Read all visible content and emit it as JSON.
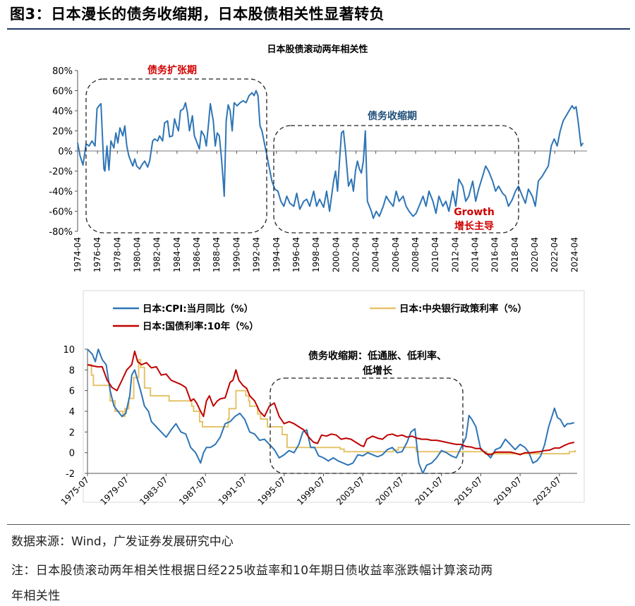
{
  "figure": {
    "title": "图3：日本漫长的债务收缩期，日本股债相关性显著转负",
    "source": "数据来源：Wind，广发证券发展研究中心",
    "note_line1": "注：日本股债滚动两年相关性根据日经225收益率和10年期日债收益率涨跌幅计算滚动两",
    "note_line2": "年相关性"
  },
  "colors": {
    "blue": "#2e75b6",
    "yellow": "#e6c36a",
    "red": "#c00000",
    "dark_blue": "#1f4e79",
    "annotation_red": "#d00000"
  },
  "chart_data": [
    {
      "type": "line",
      "title": "日本股债滚动两年相关性",
      "ylim": [
        -0.8,
        0.8
      ],
      "yticks": [
        -0.8,
        -0.6,
        -0.4,
        -0.2,
        0,
        0.2,
        0.4,
        0.6,
        0.8
      ],
      "ytick_labels": [
        "-80%",
        "-60%",
        "-40%",
        "-20%",
        "0%",
        "20%",
        "40%",
        "60%",
        "80%"
      ],
      "xlim": [
        1974.25,
        2025.5
      ],
      "xtick_labels": [
        "1974-04",
        "1976-04",
        "1978-04",
        "1980-04",
        "1982-04",
        "1984-04",
        "1986-04",
        "1988-04",
        "1990-04",
        "1992-04",
        "1994-04",
        "1996-04",
        "1998-04",
        "2000-04",
        "2002-04",
        "2004-04",
        "2006-04",
        "2008-04",
        "2010-04",
        "2012-04",
        "2014-04",
        "2016-04",
        "2018-04",
        "2020-04",
        "2022-04",
        "2024-04"
      ],
      "annotations": {
        "expansion": "债务扩张期",
        "contraction": "债务收缩期",
        "growth_en": "Growth",
        "growth_cn": "增长主导"
      },
      "series": [
        {
          "name": "日本股债滚动两年相关性",
          "x": [
            1974.25,
            1974.5,
            1974.8,
            1975.1,
            1975.4,
            1975.7,
            1976.0,
            1976.2,
            1976.4,
            1976.6,
            1976.9,
            1977.0,
            1977.2,
            1977.4,
            1977.6,
            1977.9,
            1978.1,
            1978.3,
            1978.5,
            1978.8,
            1979.0,
            1979.2,
            1979.4,
            1979.6,
            1979.8,
            1980.0,
            1980.2,
            1980.5,
            1980.7,
            1981.0,
            1981.3,
            1981.5,
            1981.8,
            1982.0,
            1982.3,
            1982.5,
            1982.8,
            1983.0,
            1983.3,
            1983.5,
            1983.8,
            1984.0,
            1984.2,
            1984.4,
            1984.6,
            1984.9,
            1985.1,
            1985.3,
            1985.5,
            1985.8,
            1986.0,
            1986.2,
            1986.5,
            1986.7,
            1987.0,
            1987.2,
            1987.4,
            1987.6,
            1987.9,
            1988.1,
            1988.3,
            1988.5,
            1988.7,
            1988.9,
            1989.0,
            1989.2,
            1989.4,
            1989.6,
            1989.8,
            1990.0,
            1990.3,
            1990.6,
            1990.9,
            1991.2,
            1991.5,
            1991.8,
            1992.0,
            1992.2,
            1992.4,
            1992.6,
            1992.8,
            1993.0,
            1993.2,
            1993.5,
            1993.8,
            1994.1,
            1994.4,
            1994.7,
            1995.0,
            1995.3,
            1995.6,
            1996.0,
            1996.3,
            1996.6,
            1997.0,
            1997.3,
            1997.6,
            1998.0,
            1998.3,
            1998.6,
            1999.0,
            1999.3,
            1999.6,
            2000.0,
            2000.2,
            2000.4,
            2000.6,
            2000.8,
            2001.0,
            2001.2,
            2001.5,
            2001.8,
            2002.0,
            2002.2,
            2002.4,
            2002.6,
            2002.8,
            2003.0,
            2003.2,
            2003.4,
            2003.6,
            2003.8,
            2004.0,
            2004.3,
            2004.6,
            2005.0,
            2005.3,
            2005.6,
            2006.0,
            2006.3,
            2006.6,
            2007.0,
            2007.3,
            2007.6,
            2008.0,
            2008.3,
            2008.6,
            2009.0,
            2009.3,
            2009.6,
            2010.0,
            2010.3,
            2010.6,
            2011.0,
            2011.3,
            2011.6,
            2012.0,
            2012.3,
            2012.6,
            2013.0,
            2013.3,
            2013.6,
            2014.0,
            2014.3,
            2014.6,
            2015.0,
            2015.3,
            2015.6,
            2016.0,
            2016.3,
            2016.6,
            2017.0,
            2017.3,
            2017.6,
            2018.0,
            2018.3,
            2018.6,
            2019.0,
            2019.3,
            2019.6,
            2020.0,
            2020.3,
            2020.6,
            2021.0,
            2021.3,
            2021.6,
            2021.9,
            2022.2,
            2022.5,
            2022.8,
            2023.1,
            2023.4,
            2023.7,
            2024.0,
            2024.2,
            2024.4,
            2024.6,
            2024.9,
            2025.1
          ],
          "y": [
            0.08,
            -0.05,
            -0.14,
            0.07,
            0.05,
            0.1,
            0.05,
            0.42,
            0.45,
            0.47,
            -0.18,
            -0.2,
            0.05,
            -0.19,
            0.1,
            0.03,
            0.18,
            0.08,
            0.23,
            0.15,
            0.25,
            0.05,
            -0.05,
            -0.1,
            -0.15,
            -0.08,
            -0.15,
            -0.18,
            -0.14,
            -0.1,
            -0.16,
            -0.1,
            0.1,
            0.12,
            0.1,
            0.15,
            0.1,
            0.28,
            0.3,
            0.14,
            0.15,
            0.32,
            0.25,
            0.2,
            0.4,
            0.42,
            0.48,
            0.38,
            0.2,
            0.35,
            0.15,
            0.1,
            0.02,
            0.2,
            0.15,
            0.05,
            0.25,
            0.47,
            0.3,
            0.05,
            0.18,
            0.15,
            -0.05,
            -0.3,
            -0.45,
            0.3,
            0.46,
            0.4,
            0.2,
            0.48,
            0.45,
            0.48,
            0.5,
            0.48,
            0.55,
            0.58,
            0.55,
            0.6,
            0.55,
            0.25,
            0.2,
            0.1,
            0.0,
            -0.15,
            -0.3,
            -0.38,
            -0.4,
            -0.5,
            -0.55,
            -0.45,
            -0.52,
            -0.55,
            -0.42,
            -0.58,
            -0.5,
            -0.48,
            -0.55,
            -0.4,
            -0.55,
            -0.48,
            -0.56,
            -0.4,
            -0.6,
            -0.3,
            -0.2,
            -0.4,
            -0.1,
            0.18,
            0.2,
            0.0,
            -0.35,
            -0.28,
            -0.4,
            -0.2,
            -0.1,
            -0.18,
            -0.22,
            -0.1,
            0.2,
            -0.5,
            -0.55,
            -0.6,
            -0.67,
            -0.6,
            -0.65,
            -0.55,
            -0.45,
            -0.5,
            -0.55,
            -0.4,
            -0.5,
            -0.45,
            -0.55,
            -0.6,
            -0.65,
            -0.62,
            -0.55,
            -0.45,
            -0.55,
            -0.4,
            -0.5,
            -0.62,
            -0.45,
            -0.55,
            -0.5,
            -0.6,
            -0.4,
            -0.55,
            -0.28,
            -0.35,
            -0.5,
            -0.45,
            -0.3,
            -0.5,
            -0.38,
            -0.25,
            -0.15,
            -0.2,
            -0.3,
            -0.4,
            -0.35,
            -0.42,
            -0.45,
            -0.55,
            -0.48,
            -0.4,
            -0.35,
            -0.45,
            -0.52,
            -0.38,
            -0.45,
            -0.55,
            -0.3,
            -0.25,
            -0.2,
            -0.15,
            0.05,
            0.12,
            0.05,
            0.2,
            0.3,
            0.35,
            0.4,
            0.45,
            0.42,
            0.44,
            0.3,
            0.05,
            0.08
          ]
        }
      ]
    },
    {
      "type": "line",
      "ylim": [
        -2,
        10
      ],
      "yticks": [
        -2,
        0,
        2,
        4,
        6,
        8,
        10
      ],
      "ytick_labels": [
        "-2",
        "0",
        "2",
        "4",
        "6",
        "8",
        "10"
      ],
      "xlim": [
        1975.5,
        2025.3
      ],
      "xtick_labels": [
        "1975-07",
        "1979-07",
        "1983-07",
        "1987-07",
        "1991-07",
        "1995-07",
        "1999-07",
        "2003-07",
        "2007-07",
        "2011-07",
        "2015-07",
        "2019-07",
        "2023-07"
      ],
      "annotations": {
        "period_line1": "债务收缩期：低通胀、低利率、",
        "period_line2": "低增长"
      },
      "series": [
        {
          "name": "日本:CPI:当月同比（%）",
          "color": "#2e75b6",
          "x": [
            1975.5,
            1976.0,
            1976.3,
            1976.6,
            1977.0,
            1977.4,
            1977.8,
            1978.2,
            1978.6,
            1979.0,
            1979.4,
            1979.8,
            1980.0,
            1980.3,
            1980.6,
            1980.9,
            1981.3,
            1981.7,
            1982.0,
            1982.5,
            1983.0,
            1983.5,
            1984.0,
            1984.5,
            1985.0,
            1985.5,
            1986.0,
            1986.5,
            1987.0,
            1987.3,
            1987.6,
            1988.0,
            1988.5,
            1989.0,
            1989.5,
            1990.0,
            1990.5,
            1991.0,
            1991.5,
            1992.0,
            1992.5,
            1993.0,
            1993.5,
            1994.0,
            1994.5,
            1995.0,
            1995.5,
            1996.0,
            1996.5,
            1997.0,
            1997.4,
            1997.8,
            1998.2,
            1998.6,
            1999.0,
            1999.5,
            2000.0,
            2000.5,
            2001.0,
            2001.5,
            2002.0,
            2002.5,
            2003.0,
            2003.5,
            2004.0,
            2004.5,
            2005.0,
            2005.5,
            2006.0,
            2006.5,
            2007.0,
            2007.5,
            2008.0,
            2008.4,
            2008.8,
            2009.2,
            2009.6,
            2010.0,
            2010.5,
            2011.0,
            2011.5,
            2012.0,
            2012.5,
            2013.0,
            2013.5,
            2014.0,
            2014.3,
            2014.6,
            2015.0,
            2015.5,
            2016.0,
            2016.5,
            2017.0,
            2017.5,
            2018.0,
            2018.5,
            2019.0,
            2019.5,
            2020.0,
            2020.4,
            2020.8,
            2021.2,
            2021.6,
            2022.0,
            2022.4,
            2022.8,
            2023.0,
            2023.3,
            2023.6,
            2024.0,
            2024.3,
            2024.6,
            2025.0
          ],
          "y": [
            10.0,
            9.5,
            8.8,
            10.0,
            9.0,
            8.5,
            6.0,
            4.5,
            4.0,
            3.5,
            3.8,
            5.5,
            7.5,
            8.0,
            7.0,
            6.0,
            4.5,
            4.0,
            3.0,
            2.5,
            2.0,
            1.5,
            2.2,
            2.8,
            2.0,
            1.8,
            0.5,
            0.0,
            -1.0,
            0.0,
            0.5,
            0.5,
            0.8,
            1.5,
            2.8,
            3.0,
            3.5,
            3.8,
            3.2,
            2.0,
            1.8,
            1.2,
            1.3,
            0.8,
            0.3,
            -0.5,
            -0.2,
            0.2,
            0.0,
            0.8,
            2.0,
            2.2,
            0.5,
            0.5,
            -0.3,
            -0.5,
            -0.8,
            -0.5,
            -0.8,
            -1.0,
            -1.2,
            -1.0,
            -0.2,
            -0.3,
            0.0,
            -0.2,
            -0.4,
            -0.2,
            0.3,
            0.5,
            0.0,
            0.1,
            1.0,
            2.0,
            2.3,
            -1.0,
            -2.2,
            -1.2,
            -1.0,
            -0.5,
            0.2,
            0.0,
            -0.3,
            -0.5,
            0.5,
            1.5,
            3.6,
            3.2,
            2.5,
            0.3,
            0.0,
            -0.5,
            0.3,
            0.5,
            1.3,
            0.8,
            0.3,
            0.8,
            0.5,
            0.0,
            -1.0,
            -0.8,
            -0.3,
            0.8,
            2.5,
            3.7,
            4.3,
            3.4,
            3.2,
            2.5,
            2.8,
            2.8,
            2.9
          ]
        },
        {
          "name": "日本:中央银行政策利率（%）",
          "color": "#e6c36a",
          "x": [
            1975.5,
            1975.9,
            1976.1,
            1977.3,
            1977.8,
            1978.3,
            1979.1,
            1979.3,
            1979.7,
            1980.2,
            1980.7,
            1980.9,
            1981.3,
            1981.9,
            1983.8,
            1985.0,
            1986.1,
            1986.3,
            1986.9,
            1987.2,
            1989.4,
            1989.8,
            1989.9,
            1990.6,
            1991.6,
            1991.9,
            1992.0,
            1992.8,
            1993.1,
            1993.8,
            1995.3,
            1995.8,
            2001.1,
            2001.2,
            2001.6,
            2006.6,
            2007.1,
            2008.9,
            2008.95,
            2016.1,
            2023.9,
            2024.5,
            2025.1
          ],
          "y": [
            8.5,
            7.5,
            6.5,
            6.5,
            5.0,
            4.0,
            3.5,
            4.25,
            5.25,
            7.25,
            9.0,
            8.25,
            6.25,
            5.5,
            5.0,
            5.0,
            4.5,
            4.0,
            3.0,
            2.5,
            2.5,
            3.25,
            4.25,
            6.0,
            5.5,
            5.0,
            4.5,
            3.75,
            3.25,
            2.5,
            1.75,
            0.5,
            0.5,
            0.35,
            0.1,
            0.25,
            0.5,
            0.3,
            0.1,
            -0.1,
            -0.1,
            0.1,
            0.25
          ]
        },
        {
          "name": "日本:国债利率:10年（%）",
          "color": "#c00000",
          "x": [
            1975.5,
            1976.0,
            1976.5,
            1977.0,
            1977.5,
            1978.0,
            1978.5,
            1979.0,
            1979.5,
            1980.0,
            1980.3,
            1980.6,
            1981.0,
            1981.5,
            1982.0,
            1982.5,
            1983.0,
            1983.5,
            1984.0,
            1984.5,
            1985.0,
            1985.5,
            1986.0,
            1986.3,
            1986.6,
            1987.0,
            1987.3,
            1987.6,
            1987.9,
            1988.3,
            1988.7,
            1989.0,
            1989.5,
            1990.0,
            1990.3,
            1990.6,
            1990.9,
            1991.3,
            1991.7,
            1992.0,
            1992.5,
            1993.0,
            1993.5,
            1994.0,
            1994.5,
            1995.0,
            1995.5,
            1996.0,
            1996.5,
            1997.0,
            1997.5,
            1998.0,
            1998.5,
            1998.9,
            1999.3,
            1999.8,
            2000.3,
            2000.8,
            2001.3,
            2001.8,
            2002.3,
            2002.8,
            2003.3,
            2003.6,
            2003.9,
            2004.5,
            2005.0,
            2005.5,
            2006.0,
            2006.5,
            2007.0,
            2007.5,
            2008.0,
            2008.5,
            2009.0,
            2009.5,
            2010.0,
            2010.5,
            2011.0,
            2011.5,
            2012.0,
            2012.5,
            2013.0,
            2013.5,
            2014.0,
            2014.5,
            2015.0,
            2015.5,
            2016.0,
            2016.5,
            2017.0,
            2017.5,
            2018.0,
            2018.5,
            2019.0,
            2019.5,
            2020.0,
            2020.5,
            2021.0,
            2021.5,
            2022.0,
            2022.5,
            2023.0,
            2023.5,
            2024.0,
            2024.5,
            2025.0
          ],
          "y": [
            8.5,
            8.4,
            8.3,
            8.3,
            7.0,
            6.3,
            6.0,
            7.0,
            8.0,
            8.5,
            9.8,
            8.8,
            8.5,
            8.7,
            8.2,
            8.3,
            7.5,
            7.6,
            7.0,
            6.8,
            6.6,
            6.3,
            5.0,
            5.2,
            4.8,
            4.0,
            3.5,
            5.0,
            5.5,
            4.5,
            5.0,
            5.2,
            5.3,
            6.8,
            7.0,
            8.0,
            7.0,
            6.5,
            6.2,
            5.5,
            5.0,
            4.0,
            3.5,
            4.5,
            4.8,
            3.5,
            2.8,
            3.0,
            2.8,
            2.5,
            2.2,
            1.5,
            1.0,
            0.9,
            1.7,
            1.6,
            1.8,
            1.7,
            1.3,
            1.4,
            1.3,
            1.0,
            0.7,
            0.6,
            1.3,
            1.6,
            1.4,
            1.3,
            1.7,
            1.8,
            1.6,
            1.7,
            1.5,
            1.6,
            1.4,
            1.3,
            1.3,
            1.2,
            1.2,
            1.1,
            1.0,
            0.9,
            0.8,
            0.8,
            0.6,
            0.55,
            0.4,
            0.4,
            -0.1,
            -0.2,
            0.05,
            0.05,
            0.05,
            0.05,
            -0.05,
            -0.2,
            0.0,
            0.0,
            0.05,
            0.1,
            0.2,
            0.25,
            0.45,
            0.45,
            0.7,
            0.9,
            1.0
          ]
        }
      ]
    }
  ]
}
